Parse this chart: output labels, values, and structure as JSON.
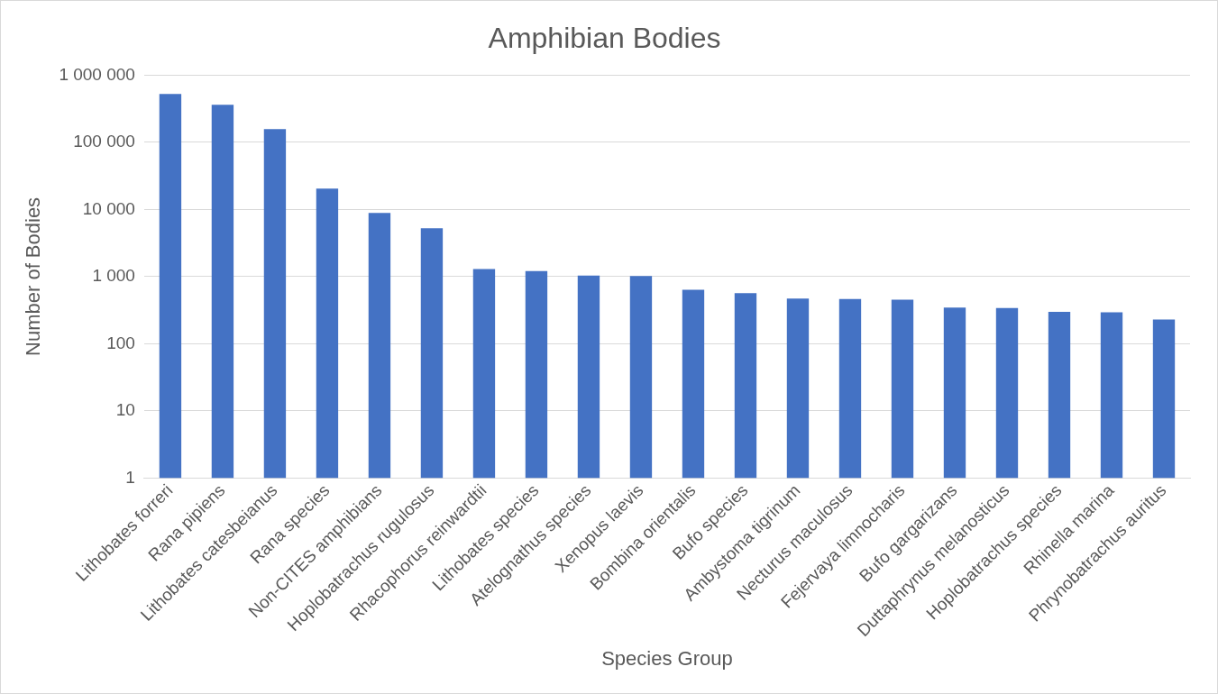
{
  "chart_data": {
    "type": "bar",
    "title": "Amphibian Bodies",
    "xlabel": "Species Group",
    "ylabel": "Number of Bodies",
    "categories": [
      "Lithobates forreri",
      "Rana pipiens",
      "Lithobates catesbeianus",
      "Rana species",
      "Non-CITES amphibians",
      "Hoplobatrachus rugulosus",
      "Rhacophorus reinwardtii",
      "Lithobates species",
      "Atelognathus species",
      "Xenopus laevis",
      "Bombina orientalis",
      "Bufo species",
      "Ambystoma tigrinum",
      "Necturus maculosus",
      "Fejervaya limnocharis",
      "Bufo gargarizans",
      "Duttaphrynus melanosticus",
      "Hoplobatrachus species",
      "Rhinella marina",
      "Phrynobatrachus auritus"
    ],
    "values": [
      525000,
      361000,
      157000,
      20500,
      8900,
      5260,
      1300,
      1210,
      1040,
      1020,
      635,
      568,
      470,
      465,
      453,
      347,
      340,
      299,
      295,
      230
    ],
    "color": "#4472c4",
    "log": "y",
    "ylim": [
      1,
      1000000
    ],
    "yticks": [
      1,
      10,
      100,
      {
        "value": 1000,
        "label": "1 000"
      },
      {
        "value": 10000,
        "label": "10 000"
      },
      {
        "value": 100000,
        "label": "100 000"
      },
      {
        "value": 1000000,
        "label": "1 000 000"
      }
    ],
    "grid": "y"
  }
}
